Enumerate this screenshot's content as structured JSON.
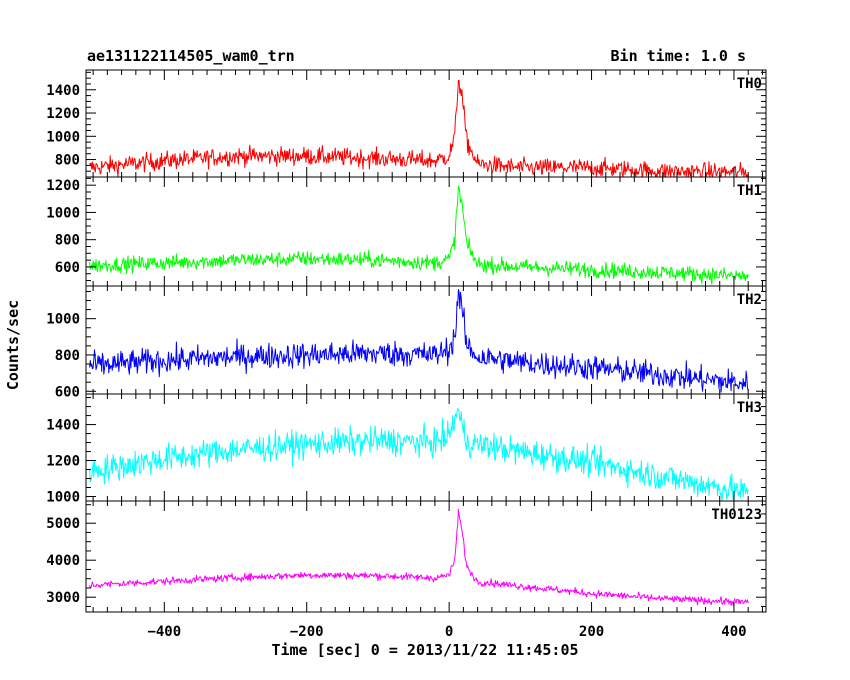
{
  "header": {
    "title": "ae131122114505_wam0_trn",
    "bin_time": "Bin time: 1.0 s"
  },
  "chart_data": {
    "type": "line",
    "xlabel": "Time [sec] 0 = 2013/11/22 11:45:05",
    "ylabel": "Counts/sec",
    "xlim": [
      -510,
      445
    ],
    "xticks": [
      -400,
      -200,
      0,
      200,
      400
    ],
    "x_tick_labels": [
      "−400",
      "−200",
      "0",
      "200",
      "400"
    ],
    "grid": false,
    "panels": [
      {
        "name": "TH0",
        "color": "#ff0000",
        "ylim": [
          650,
          1570
        ],
        "yticks": [
          800,
          1000,
          1200,
          1400
        ],
        "ytick_labels": [
          "800",
          "1000",
          "1200",
          "1400"
        ],
        "noise": 55,
        "series": [
          {
            "x": -505,
            "y": 730
          },
          {
            "x": -400,
            "y": 790
          },
          {
            "x": -300,
            "y": 830
          },
          {
            "x": -200,
            "y": 830
          },
          {
            "x": -100,
            "y": 810
          },
          {
            "x": -20,
            "y": 790
          },
          {
            "x": 0,
            "y": 830
          },
          {
            "x": 8,
            "y": 1000
          },
          {
            "x": 13,
            "y": 1500
          },
          {
            "x": 18,
            "y": 1350
          },
          {
            "x": 25,
            "y": 950
          },
          {
            "x": 40,
            "y": 760
          },
          {
            "x": 100,
            "y": 730
          },
          {
            "x": 200,
            "y": 730
          },
          {
            "x": 300,
            "y": 700
          },
          {
            "x": 420,
            "y": 690
          }
        ]
      },
      {
        "name": "TH1",
        "color": "#00ff00",
        "ylim": [
          460,
          1260
        ],
        "yticks": [
          600,
          800,
          1000,
          1200
        ],
        "ytick_labels": [
          "600",
          "800",
          "1000",
          "1200"
        ],
        "noise": 40,
        "series": [
          {
            "x": -505,
            "y": 610
          },
          {
            "x": -400,
            "y": 630
          },
          {
            "x": -300,
            "y": 650
          },
          {
            "x": -200,
            "y": 660
          },
          {
            "x": -100,
            "y": 650
          },
          {
            "x": -20,
            "y": 630
          },
          {
            "x": 0,
            "y": 660
          },
          {
            "x": 8,
            "y": 800
          },
          {
            "x": 13,
            "y": 1180
          },
          {
            "x": 18,
            "y": 1060
          },
          {
            "x": 25,
            "y": 760
          },
          {
            "x": 40,
            "y": 620
          },
          {
            "x": 100,
            "y": 600
          },
          {
            "x": 200,
            "y": 580
          },
          {
            "x": 300,
            "y": 560
          },
          {
            "x": 420,
            "y": 530
          }
        ]
      },
      {
        "name": "TH2",
        "color": "#0000ff",
        "ylim": [
          585,
          1180
        ],
        "yticks": [
          600,
          800,
          1000
        ],
        "ytick_labels": [
          "600",
          "800",
          "1000"
        ],
        "noise": 50,
        "series": [
          {
            "x": -505,
            "y": 740
          },
          {
            "x": -400,
            "y": 770
          },
          {
            "x": -300,
            "y": 790
          },
          {
            "x": -200,
            "y": 800
          },
          {
            "x": -100,
            "y": 810
          },
          {
            "x": -20,
            "y": 800
          },
          {
            "x": 0,
            "y": 830
          },
          {
            "x": 8,
            "y": 900
          },
          {
            "x": 13,
            "y": 1150
          },
          {
            "x": 18,
            "y": 1050
          },
          {
            "x": 25,
            "y": 850
          },
          {
            "x": 40,
            "y": 790
          },
          {
            "x": 100,
            "y": 760
          },
          {
            "x": 200,
            "y": 730
          },
          {
            "x": 300,
            "y": 690
          },
          {
            "x": 420,
            "y": 640
          }
        ]
      },
      {
        "name": "TH3",
        "color": "#00ffff",
        "ylim": [
          975,
          1570
        ],
        "yticks": [
          1000,
          1200,
          1400
        ],
        "ytick_labels": [
          "1000",
          "1200",
          "1400"
        ],
        "noise": 55,
        "series": [
          {
            "x": -505,
            "y": 1140
          },
          {
            "x": -400,
            "y": 1210
          },
          {
            "x": -300,
            "y": 1260
          },
          {
            "x": -200,
            "y": 1290
          },
          {
            "x": -100,
            "y": 1310
          },
          {
            "x": -20,
            "y": 1300
          },
          {
            "x": 0,
            "y": 1340
          },
          {
            "x": 12,
            "y": 1480
          },
          {
            "x": 25,
            "y": 1300
          },
          {
            "x": 100,
            "y": 1250
          },
          {
            "x": 200,
            "y": 1190
          },
          {
            "x": 300,
            "y": 1110
          },
          {
            "x": 420,
            "y": 1020
          }
        ]
      },
      {
        "name": "TH0123",
        "color": "#ff00ff",
        "ylim": [
          2600,
          5600
        ],
        "yticks": [
          3000,
          4000,
          5000
        ],
        "ytick_labels": [
          "3000",
          "4000",
          "5000"
        ],
        "noise": 70,
        "series": [
          {
            "x": -505,
            "y": 3320
          },
          {
            "x": -400,
            "y": 3430
          },
          {
            "x": -300,
            "y": 3530
          },
          {
            "x": -200,
            "y": 3600
          },
          {
            "x": -100,
            "y": 3580
          },
          {
            "x": -20,
            "y": 3520
          },
          {
            "x": 0,
            "y": 3600
          },
          {
            "x": 8,
            "y": 4000
          },
          {
            "x": 13,
            "y": 5300
          },
          {
            "x": 18,
            "y": 4800
          },
          {
            "x": 25,
            "y": 3800
          },
          {
            "x": 40,
            "y": 3420
          },
          {
            "x": 100,
            "y": 3300
          },
          {
            "x": 200,
            "y": 3100
          },
          {
            "x": 300,
            "y": 2960
          },
          {
            "x": 420,
            "y": 2860
          }
        ]
      }
    ]
  }
}
